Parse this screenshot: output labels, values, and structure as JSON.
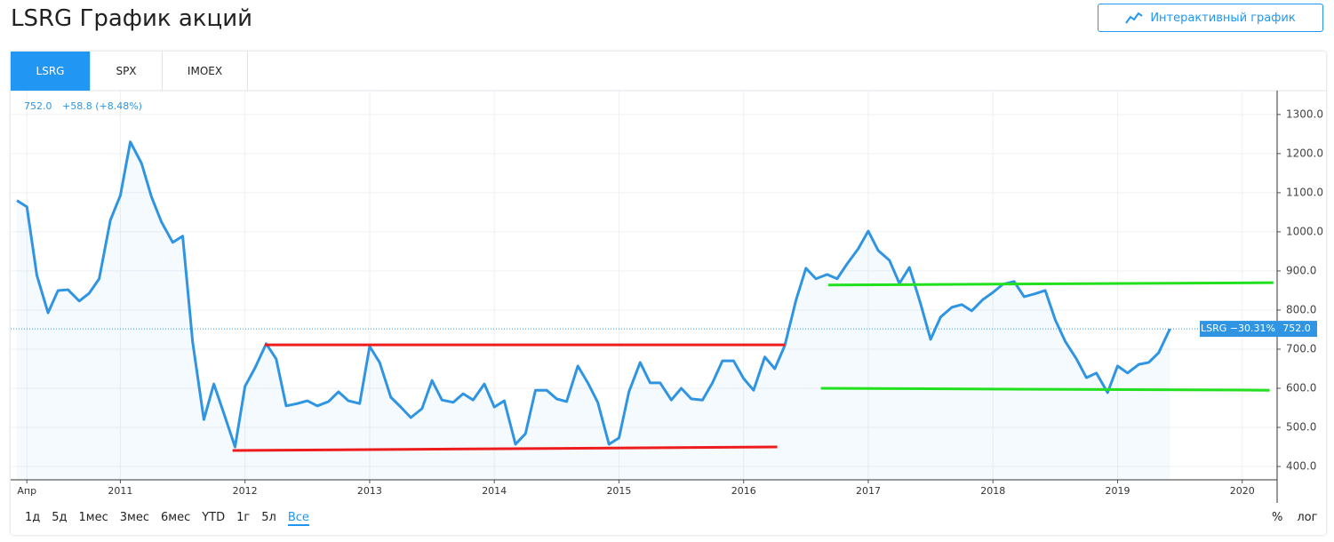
{
  "header": {
    "title": "LSRG График акций",
    "button": "Интерактивный график"
  },
  "tabs": [
    "LSRG",
    "SPX",
    "IMOEX"
  ],
  "range_buttons": [
    "1д",
    "5д",
    "1мес",
    "3мес",
    "6мес",
    "YTD",
    "1г",
    "5л",
    "Все"
  ],
  "scale_buttons": [
    "%",
    "лог"
  ],
  "chart_data": {
    "type": "line",
    "last_price": "752.0",
    "change": "+58.8 (+8.48%)",
    "price_tag_name": "LSRG −30.31%",
    "price_tag_value": "752.0",
    "x": [
      2010.17,
      2010.25,
      2010.33,
      2010.42,
      2010.5,
      2010.58,
      2010.67,
      2010.75,
      2010.83,
      2010.92,
      2011.0,
      2011.08,
      2011.17,
      2011.25,
      2011.33,
      2011.42,
      2011.5,
      2011.58,
      2011.67,
      2011.75,
      2011.83,
      2011.92,
      2012.0,
      2012.08,
      2012.17,
      2012.25,
      2012.33,
      2012.42,
      2012.5,
      2012.58,
      2012.67,
      2012.75,
      2012.83,
      2012.92,
      2013.0,
      2013.08,
      2013.17,
      2013.25,
      2013.33,
      2013.42,
      2013.5,
      2013.58,
      2013.67,
      2013.75,
      2013.83,
      2013.92,
      2014.0,
      2014.08,
      2014.17,
      2014.25,
      2014.33,
      2014.42,
      2014.5,
      2014.58,
      2014.67,
      2014.75,
      2014.83,
      2014.92,
      2015.0,
      2015.08,
      2015.17,
      2015.25,
      2015.33,
      2015.42,
      2015.5,
      2015.58,
      2015.67,
      2015.75,
      2015.83,
      2015.92,
      2016.0,
      2016.08,
      2016.17,
      2016.25,
      2016.33,
      2016.42,
      2016.5,
      2016.58,
      2016.67,
      2016.75,
      2016.83,
      2016.92,
      2017.0,
      2017.08,
      2017.17,
      2017.25,
      2017.33,
      2017.42,
      2017.5,
      2017.58,
      2017.67,
      2017.75,
      2017.83,
      2017.92,
      2018.0,
      2018.08,
      2018.17,
      2018.25,
      2018.33,
      2018.42,
      2018.5,
      2018.58,
      2018.67,
      2018.75,
      2018.83,
      2018.92,
      2019.0,
      2019.08,
      2019.17,
      2019.25,
      2019.33,
      2019.42
    ],
    "series": [
      {
        "name": "LSRG",
        "color": "#2f95e3",
        "values": [
          1080,
          1064,
          889,
          793,
          850,
          852,
          823,
          843,
          880,
          1030,
          1093,
          1230,
          1175,
          1089,
          1025,
          973,
          989,
          718,
          520,
          611,
          536,
          450,
          605,
          652,
          714,
          675,
          555,
          561,
          568,
          555,
          566,
          591,
          568,
          561,
          707,
          666,
          577,
          552,
          525,
          548,
          620,
          570,
          564,
          586,
          570,
          611,
          552,
          568,
          457,
          484,
          595,
          595,
          573,
          566,
          657,
          614,
          564,
          457,
          473,
          591,
          666,
          614,
          614,
          570,
          600,
          573,
          570,
          614,
          670,
          670,
          625,
          595,
          680,
          650,
          709,
          825,
          907,
          880,
          891,
          880,
          918,
          957,
          1002,
          952,
          927,
          868,
          909,
          816,
          725,
          782,
          807,
          814,
          798,
          827,
          845,
          866,
          873,
          834,
          841,
          850,
          775,
          720,
          675,
          627,
          639,
          589,
          657,
          639,
          661,
          666,
          691,
          752
        ]
      }
    ],
    "trendlines": [
      {
        "color": "#ee1c1c",
        "x": [
          2012.16,
          2016.33
        ],
        "y": [
          711,
          711
        ]
      },
      {
        "color": "#ee1c1c",
        "x": [
          2011.9,
          2016.27
        ],
        "y": [
          441,
          450
        ]
      },
      {
        "color": "#22e01e",
        "x": [
          2016.68,
          2020.25
        ],
        "y": [
          864,
          870
        ]
      },
      {
        "color": "#22e01e",
        "x": [
          2016.62,
          2020.22
        ],
        "y": [
          600,
          595
        ]
      }
    ],
    "xlim": [
      2010.12,
      2020.28
    ],
    "xticks": [
      {
        "value": 2010.25,
        "label": "Апр"
      },
      2011,
      2012,
      2013,
      2014,
      2015,
      2016,
      2017,
      2018,
      2019,
      2020
    ],
    "ylim": [
      366,
      1361
    ],
    "yticks": [
      {
        "value": 400,
        "label": "400.0"
      },
      {
        "value": 500,
        "label": "500.0"
      },
      {
        "value": 600,
        "label": "600.0"
      },
      {
        "value": 700,
        "label": "700.0"
      },
      {
        "value": 800,
        "label": "800.0"
      },
      {
        "value": 900,
        "label": "900.0"
      },
      {
        "value": 1000,
        "label": "1000.0"
      },
      {
        "value": 1100,
        "label": "1100.0"
      },
      {
        "value": 1200,
        "label": "1200.0"
      },
      {
        "value": 1300,
        "label": "1300.0"
      }
    ],
    "grid": true
  }
}
